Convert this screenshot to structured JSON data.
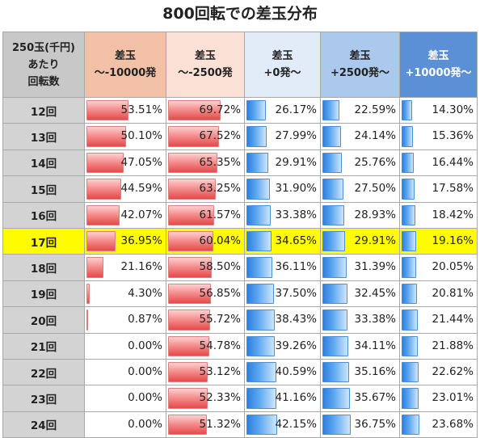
{
  "title": "800回転での差玉分布",
  "header": {
    "corner": [
      "250玉(千円)",
      "あたり",
      "回転数"
    ],
    "cols": [
      [
        "差玉",
        "～-10000発"
      ],
      [
        "差玉",
        "～-2500発"
      ],
      [
        "差玉",
        "+0発～"
      ],
      [
        "差玉",
        "+2500発～"
      ],
      [
        "差玉",
        "+10000発～"
      ]
    ]
  },
  "colors": {
    "highlight": "#fffb00",
    "neg_bar": "#e64a4a",
    "pos_bar": "#2f7fe0"
  },
  "highlight_row": "17回",
  "rows": [
    {
      "label": "12回",
      "values": [
        "53.51%",
        "69.72%",
        "26.17%",
        "22.59%",
        "14.30%"
      ],
      "pct": [
        53.51,
        69.72,
        26.17,
        22.59,
        14.3
      ]
    },
    {
      "label": "13回",
      "values": [
        "50.10%",
        "67.52%",
        "27.99%",
        "24.14%",
        "15.36%"
      ],
      "pct": [
        50.1,
        67.52,
        27.99,
        24.14,
        15.36
      ]
    },
    {
      "label": "14回",
      "values": [
        "47.05%",
        "65.35%",
        "29.91%",
        "25.76%",
        "16.44%"
      ],
      "pct": [
        47.05,
        65.35,
        29.91,
        25.76,
        16.44
      ]
    },
    {
      "label": "15回",
      "values": [
        "44.59%",
        "63.25%",
        "31.90%",
        "27.50%",
        "17.58%"
      ],
      "pct": [
        44.59,
        63.25,
        31.9,
        27.5,
        17.58
      ]
    },
    {
      "label": "16回",
      "values": [
        "42.07%",
        "61.57%",
        "33.38%",
        "28.93%",
        "18.42%"
      ],
      "pct": [
        42.07,
        61.57,
        33.38,
        28.93,
        18.42
      ]
    },
    {
      "label": "17回",
      "values": [
        "36.95%",
        "60.04%",
        "34.65%",
        "29.91%",
        "19.16%"
      ],
      "pct": [
        36.95,
        60.04,
        34.65,
        29.91,
        19.16
      ]
    },
    {
      "label": "18回",
      "values": [
        "21.16%",
        "58.50%",
        "36.11%",
        "31.39%",
        "20.05%"
      ],
      "pct": [
        21.16,
        58.5,
        36.11,
        31.39,
        20.05
      ]
    },
    {
      "label": "19回",
      "values": [
        "4.30%",
        "56.85%",
        "37.50%",
        "32.45%",
        "20.81%"
      ],
      "pct": [
        4.3,
        56.85,
        37.5,
        32.45,
        20.81
      ]
    },
    {
      "label": "20回",
      "values": [
        "0.87%",
        "55.72%",
        "38.43%",
        "33.38%",
        "21.44%"
      ],
      "pct": [
        0.87,
        55.72,
        38.43,
        33.38,
        21.44
      ]
    },
    {
      "label": "21回",
      "values": [
        "0.00%",
        "54.78%",
        "39.26%",
        "34.11%",
        "21.88%"
      ],
      "pct": [
        0.0,
        54.78,
        39.26,
        34.11,
        21.88
      ]
    },
    {
      "label": "22回",
      "values": [
        "0.00%",
        "53.12%",
        "40.59%",
        "35.16%",
        "22.62%"
      ],
      "pct": [
        0.0,
        53.12,
        40.59,
        35.16,
        22.62
      ]
    },
    {
      "label": "23回",
      "values": [
        "0.00%",
        "52.33%",
        "41.16%",
        "35.67%",
        "23.01%"
      ],
      "pct": [
        0.0,
        52.33,
        41.16,
        35.67,
        23.01
      ]
    },
    {
      "label": "24回",
      "values": [
        "0.00%",
        "51.32%",
        "42.15%",
        "36.75%",
        "23.68%"
      ],
      "pct": [
        0.0,
        51.32,
        42.15,
        36.75,
        23.68
      ]
    }
  ]
}
